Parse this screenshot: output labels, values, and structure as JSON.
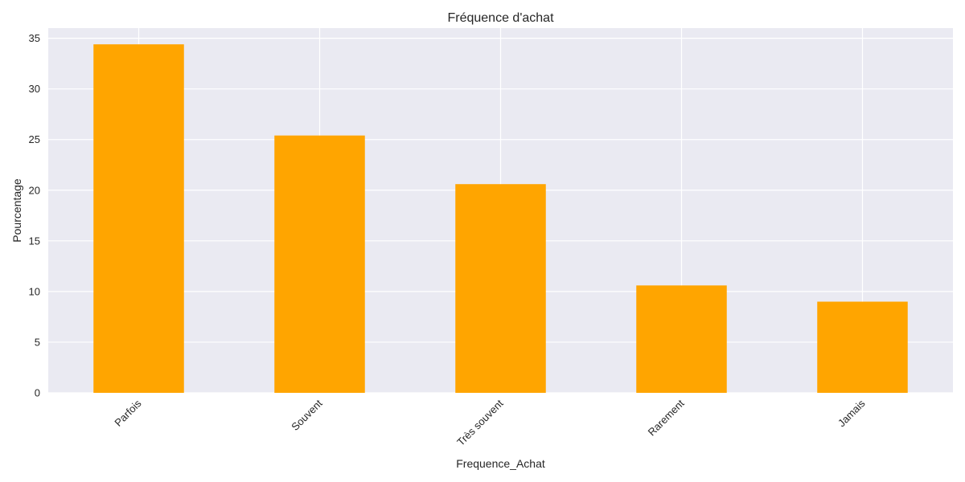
{
  "chart_data": {
    "type": "bar",
    "title": "Fréquence d'achat",
    "xlabel": "Frequence_Achat",
    "ylabel": "Pourcentage",
    "categories": [
      "Parfois",
      "Souvent",
      "Très souvent",
      "Rarement",
      "Jamais"
    ],
    "values": [
      34.4,
      25.4,
      20.6,
      10.6,
      9.0
    ],
    "ylim": [
      0,
      36
    ],
    "yticks": [
      0,
      5,
      10,
      15,
      20,
      25,
      30,
      35
    ],
    "grid": true,
    "legend": "none",
    "colors": {
      "bar": "#FFA500",
      "plot_bg": "#EAEAF2",
      "grid": "#FFFFFF",
      "text": "#262626"
    }
  }
}
